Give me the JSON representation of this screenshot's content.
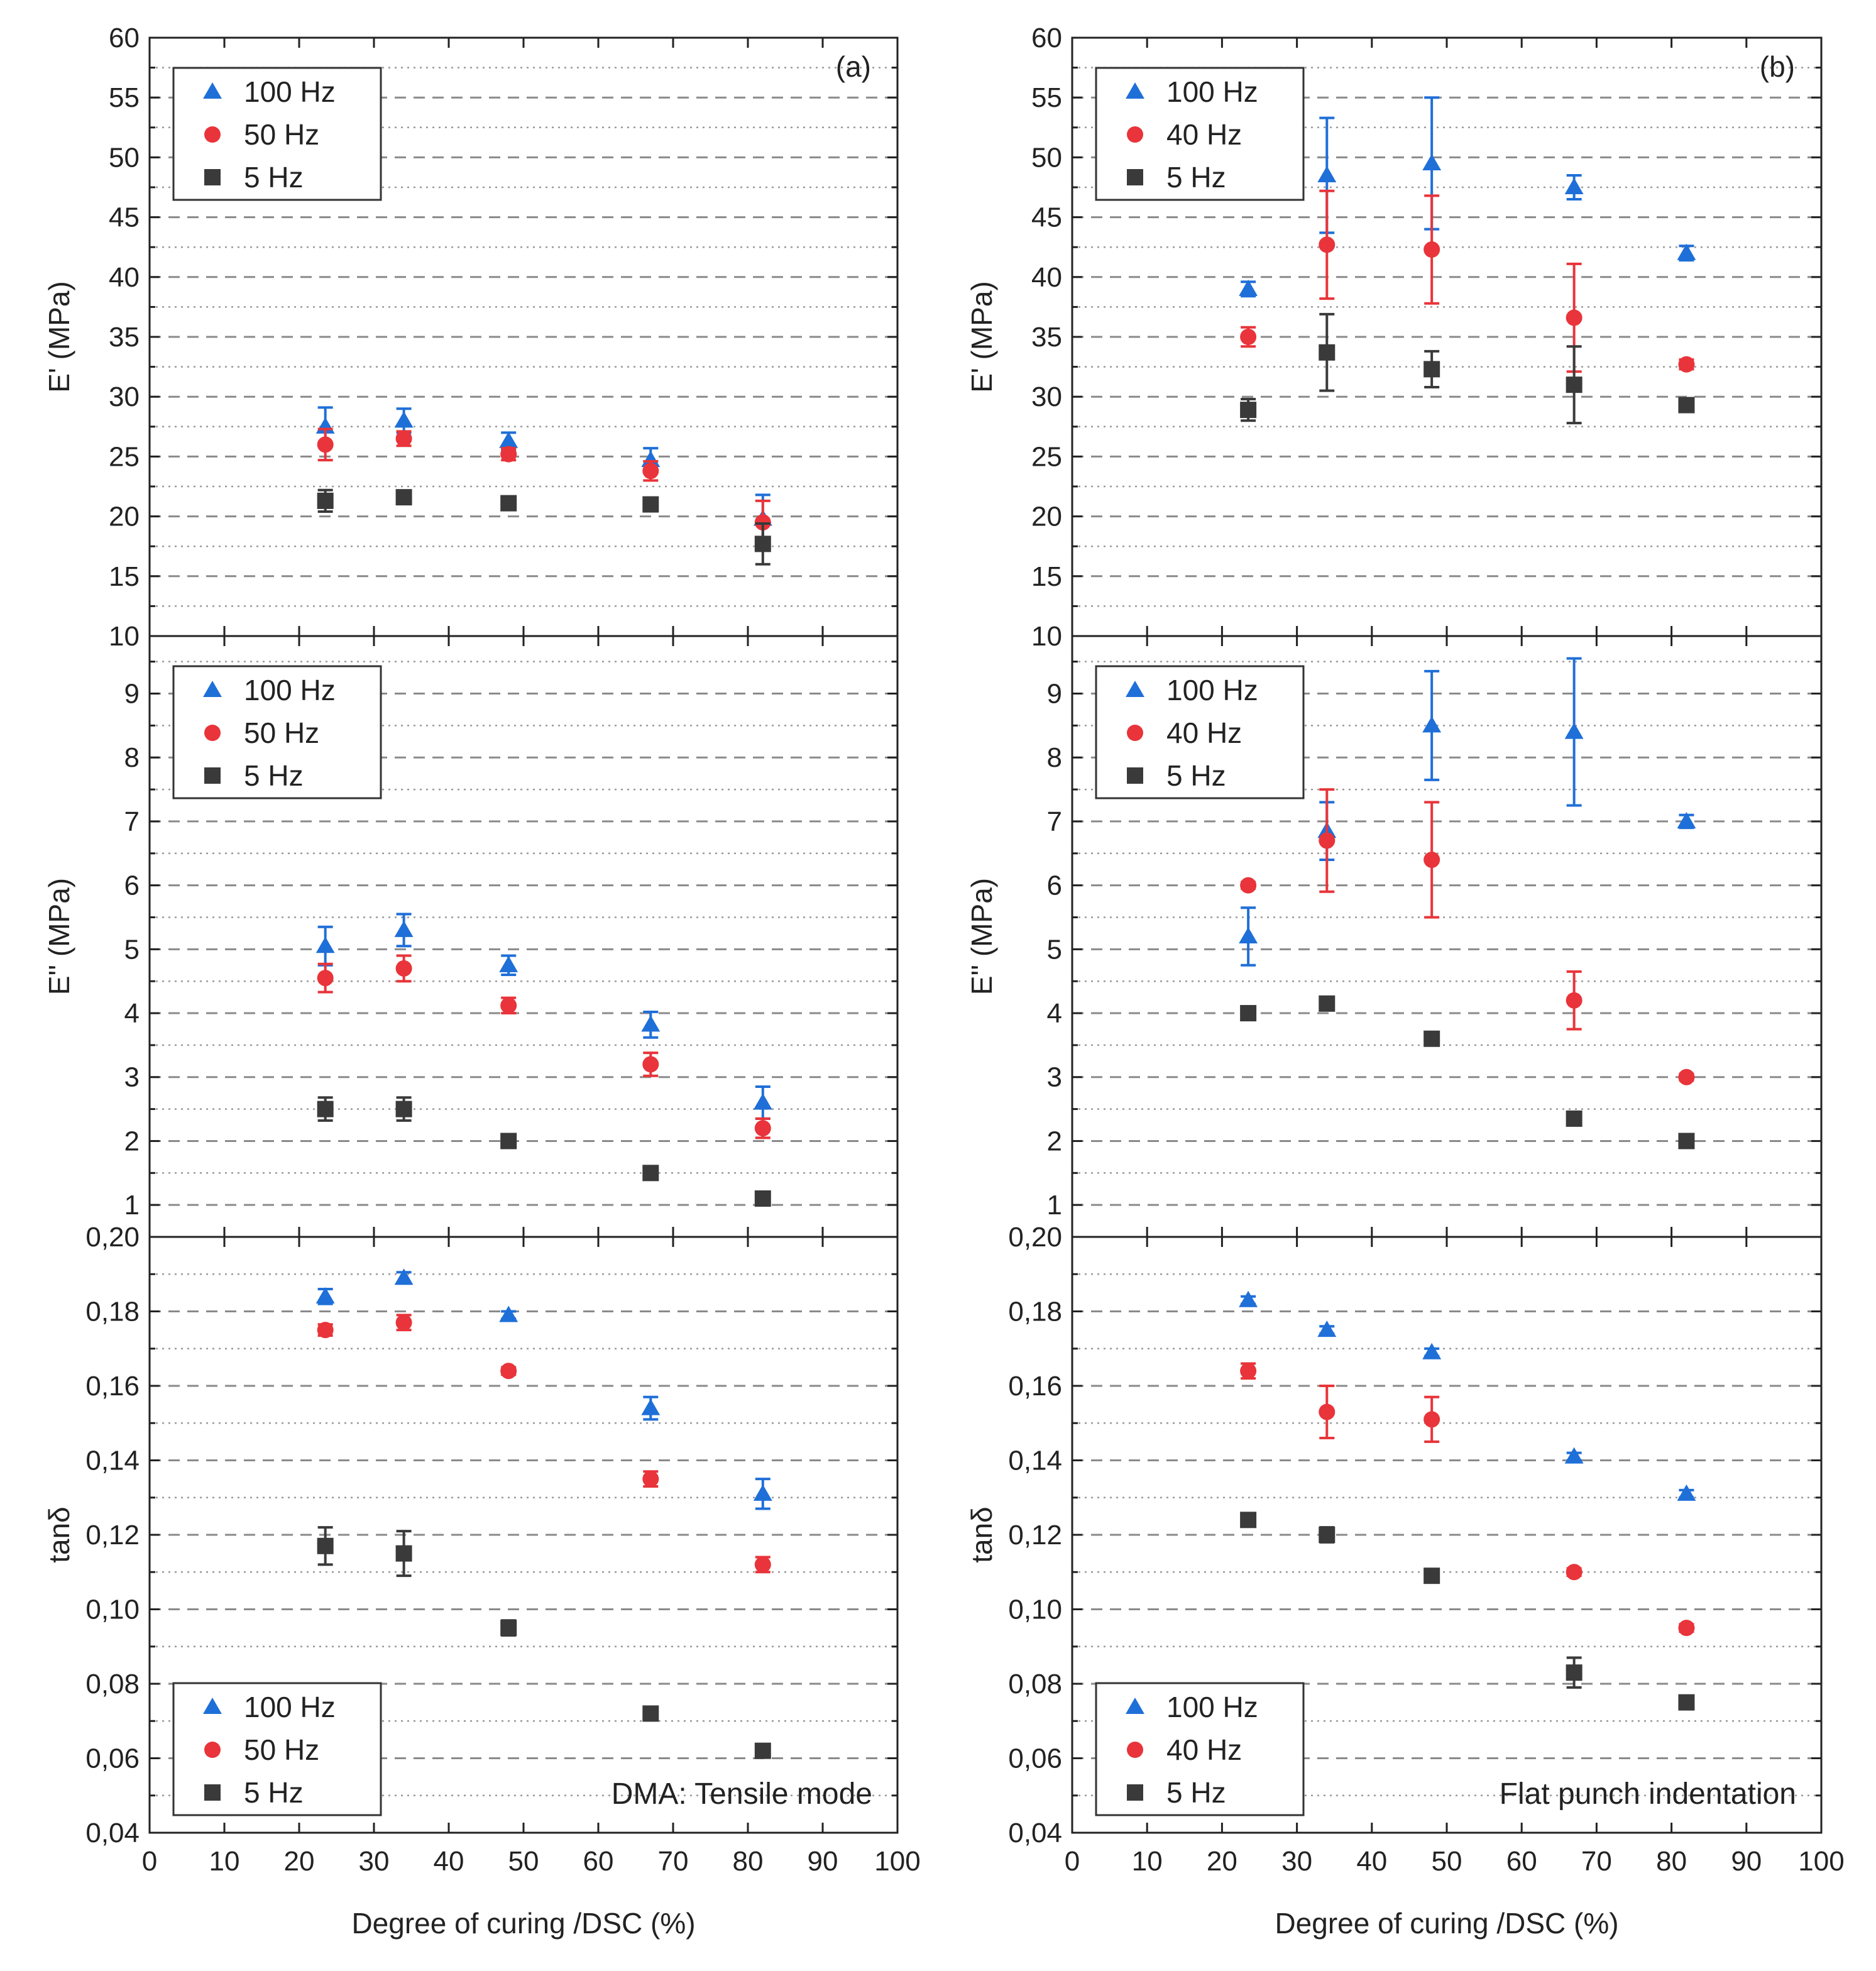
{
  "chart_data": [
    {
      "id": "a",
      "panel_label": "(a)",
      "mode_label": "DMA: Tensile mode",
      "type": "scatter",
      "xlabel": "Degree of curing /DSC (%)",
      "xlim": [
        0,
        100
      ],
      "x_ticks": [
        "0",
        "10",
        "20",
        "30",
        "40",
        "50",
        "60",
        "70",
        "80",
        "90",
        "100"
      ],
      "x": [
        23.5,
        34,
        48,
        67,
        82
      ],
      "subplots": [
        {
          "key": "storage",
          "ylabel": "E' (MPa)",
          "ylim": [
            10,
            60
          ],
          "y_ticks": [
            "10",
            "15",
            "20",
            "25",
            "30",
            "35",
            "40",
            "45",
            "50",
            "55",
            "60"
          ],
          "legend_position": "top-left",
          "series": [
            {
              "name": "100 Hz",
              "marker": "triangle",
              "color": "#1f6fd8",
              "values": [
                27.5,
                28.0,
                26.3,
                24.7,
                19.8
              ],
              "errors": [
                1.6,
                1.0,
                0.7,
                1.0,
                2.0
              ]
            },
            {
              "name": "50 Hz",
              "marker": "circle",
              "color": "#e8343a",
              "values": [
                26.0,
                26.5,
                25.2,
                23.8,
                19.5
              ],
              "errors": [
                1.3,
                0.6,
                0.5,
                0.8,
                1.8
              ]
            },
            {
              "name": "5 Hz",
              "marker": "square",
              "color": "#3a3a3a",
              "values": [
                21.3,
                21.6,
                21.1,
                21.0,
                17.7
              ],
              "errors": [
                0.9,
                0.4,
                0.3,
                0.4,
                1.7
              ]
            }
          ]
        },
        {
          "key": "loss",
          "ylabel": "E'' (MPa)",
          "ylim": [
            0.5,
            9.9
          ],
          "y_ticks": [
            "1",
            "2",
            "3",
            "4",
            "5",
            "6",
            "7",
            "8",
            "9"
          ],
          "legend_position": "top-left",
          "series": [
            {
              "name": "100 Hz",
              "marker": "triangle",
              "color": "#1f6fd8",
              "values": [
                5.05,
                5.3,
                4.75,
                3.82,
                2.6
              ],
              "errors": [
                0.3,
                0.25,
                0.15,
                0.2,
                0.25
              ]
            },
            {
              "name": "50 Hz",
              "marker": "circle",
              "color": "#e8343a",
              "values": [
                4.55,
                4.7,
                4.12,
                3.2,
                2.2
              ],
              "errors": [
                0.22,
                0.2,
                0.12,
                0.18,
                0.15
              ]
            },
            {
              "name": "5 Hz",
              "marker": "square",
              "color": "#3a3a3a",
              "values": [
                2.5,
                2.5,
                2.0,
                1.5,
                1.1
              ],
              "errors": [
                0.18,
                0.18,
                0.06,
                0.05,
                0.05
              ]
            }
          ]
        },
        {
          "key": "tan",
          "ylabel": "tanδ",
          "ylim": [
            0.04,
            0.2
          ],
          "y_ticks": [
            "0,04",
            "0,06",
            "0,08",
            "0,10",
            "0,12",
            "0,14",
            "0,16",
            "0,18",
            "0,20"
          ],
          "legend_position": "bottom-left",
          "series": [
            {
              "name": "100 Hz",
              "marker": "triangle",
              "color": "#1f6fd8",
              "values": [
                0.184,
                0.189,
                0.179,
                0.154,
                0.131
              ],
              "errors": [
                0.002,
                0.0015,
                0.001,
                0.003,
                0.004
              ]
            },
            {
              "name": "50 Hz",
              "marker": "circle",
              "color": "#e8343a",
              "values": [
                0.175,
                0.177,
                0.164,
                0.135,
                0.112
              ],
              "errors": [
                0.0015,
                0.002,
                0.001,
                0.002,
                0.002
              ]
            },
            {
              "name": "5 Hz",
              "marker": "square",
              "color": "#3a3a3a",
              "values": [
                0.117,
                0.115,
                0.095,
                0.072,
                0.062
              ],
              "errors": [
                0.005,
                0.006,
                0.002,
                0.001,
                0.001
              ]
            }
          ]
        }
      ]
    },
    {
      "id": "b",
      "panel_label": "(b)",
      "mode_label": "Flat punch indentation",
      "type": "scatter",
      "xlabel": "Degree of curing /DSC (%)",
      "xlim": [
        0,
        100
      ],
      "x_ticks": [
        "0",
        "10",
        "20",
        "30",
        "40",
        "50",
        "60",
        "70",
        "80",
        "90",
        "100"
      ],
      "x": [
        23.5,
        34,
        48,
        67,
        82
      ],
      "subplots": [
        {
          "key": "storage",
          "ylabel": "E' (MPa)",
          "ylim": [
            10,
            60
          ],
          "y_ticks": [
            "10",
            "15",
            "20",
            "25",
            "30",
            "35",
            "40",
            "45",
            "50",
            "55",
            "60"
          ],
          "legend_position": "top-left",
          "series": [
            {
              "name": "100 Hz",
              "marker": "triangle",
              "color": "#1f6fd8",
              "values": [
                39.0,
                48.5,
                49.5,
                47.5,
                42.0
              ],
              "errors": [
                0.6,
                4.8,
                5.5,
                1.0,
                0.6
              ]
            },
            {
              "name": "40 Hz",
              "marker": "circle",
              "color": "#e8343a",
              "values": [
                35.0,
                42.7,
                42.3,
                36.6,
                32.7
              ],
              "errors": [
                0.8,
                4.5,
                4.5,
                4.5,
                0.4
              ]
            },
            {
              "name": "5 Hz",
              "marker": "square",
              "color": "#3a3a3a",
              "values": [
                28.9,
                33.7,
                32.3,
                31.0,
                29.3
              ],
              "errors": [
                0.9,
                3.2,
                1.5,
                3.2,
                0.4
              ]
            }
          ]
        },
        {
          "key": "loss",
          "ylabel": "E'' (MPa)",
          "ylim": [
            0.5,
            9.9
          ],
          "y_ticks": [
            "1",
            "2",
            "3",
            "4",
            "5",
            "6",
            "7",
            "8",
            "9"
          ],
          "legend_position": "top-left",
          "series": [
            {
              "name": "100 Hz",
              "marker": "triangle",
              "color": "#1f6fd8",
              "values": [
                5.2,
                6.85,
                8.5,
                8.4,
                7.0
              ],
              "errors": [
                0.45,
                0.45,
                0.85,
                1.15,
                0.1
              ]
            },
            {
              "name": "40 Hz",
              "marker": "circle",
              "color": "#e8343a",
              "values": [
                6.0,
                6.7,
                6.4,
                4.2,
                3.0
              ],
              "errors": [
                0.05,
                0.8,
                0.9,
                0.45,
                0.05
              ]
            },
            {
              "name": "5 Hz",
              "marker": "square",
              "color": "#3a3a3a",
              "values": [
                4.0,
                4.15,
                3.6,
                2.35,
                2.0
              ],
              "errors": [
                0.05,
                0.08,
                0.05,
                0.05,
                0.03
              ]
            }
          ]
        },
        {
          "key": "tan",
          "ylabel": "tanδ",
          "ylim": [
            0.04,
            0.2
          ],
          "y_ticks": [
            "0,04",
            "0,06",
            "0,08",
            "0,10",
            "0,12",
            "0,14",
            "0,16",
            "0,18",
            "0,20"
          ],
          "legend_position": "bottom-left",
          "series": [
            {
              "name": "100 Hz",
              "marker": "triangle",
              "color": "#1f6fd8",
              "values": [
                0.183,
                0.175,
                0.169,
                0.141,
                0.131
              ],
              "errors": [
                0.001,
                0.001,
                0.001,
                0.001,
                0.001
              ]
            },
            {
              "name": "40 Hz",
              "marker": "circle",
              "color": "#e8343a",
              "values": [
                0.164,
                0.153,
                0.151,
                0.11,
                0.095
              ],
              "errors": [
                0.002,
                0.007,
                0.006,
                0.001,
                0.001
              ]
            },
            {
              "name": "5 Hz",
              "marker": "square",
              "color": "#3a3a3a",
              "values": [
                0.124,
                0.12,
                0.109,
                0.083,
                0.075
              ],
              "errors": [
                0.001,
                0.002,
                0.001,
                0.004,
                0.001
              ]
            }
          ]
        }
      ]
    }
  ]
}
